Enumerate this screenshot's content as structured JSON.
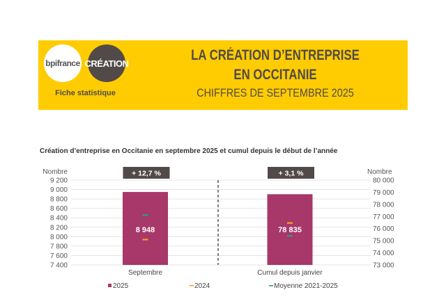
{
  "header": {
    "logo_bpifrance": "bpifrance",
    "logo_creation": "CRÉATION",
    "subtitle": "Fiche statistique",
    "title_line1": "LA CRÉATION D’ENTREPRISE",
    "title_line2": "EN OCCITANIE",
    "title_line3": "CHIFFRES DE SEPTEMBRE 2025"
  },
  "colors": {
    "banner": "#fecc00",
    "bar": "#a8376a",
    "y2024": "#f7a21b",
    "mean": "#2a9d8f",
    "badge": "#524a48"
  },
  "chart_data": {
    "type": "bar",
    "title": "Création d’entreprise en Occitanie en septembre 2025 et cumul depuis le début de l’année",
    "categories": [
      "Septembre",
      "Cumul depuis janvier"
    ],
    "left_axis": {
      "label": "Nombre",
      "ylim": [
        7400,
        9200
      ],
      "ticks": [
        "9 200",
        "9 000",
        "8 800",
        "8 600",
        "8 400",
        "8 200",
        "8 000",
        "7 800",
        "7 600",
        "7 400"
      ]
    },
    "right_axis": {
      "label": "Nombre",
      "ylim": [
        73000,
        80000
      ],
      "ticks": [
        "80 000",
        "79 000",
        "78 000",
        "77 000",
        "76 000",
        "75 000",
        "74 000",
        "73 000"
      ]
    },
    "series": [
      {
        "name": "2025",
        "type": "bar",
        "values": [
          8948,
          78835
        ],
        "labels": [
          "8 948",
          "78 835"
        ]
      },
      {
        "name": "2024",
        "type": "marker",
        "values": [
          7940,
          76465
        ]
      },
      {
        "name": "Moyenne 2021-2025",
        "type": "marker",
        "values": [
          8460,
          75400
        ]
      }
    ],
    "badges": [
      "+ 12,7 %",
      "+ 3,1 %"
    ],
    "legend": [
      "2025",
      "2024",
      "Moyenne 2021-2025"
    ],
    "legend_position": "bottom"
  }
}
